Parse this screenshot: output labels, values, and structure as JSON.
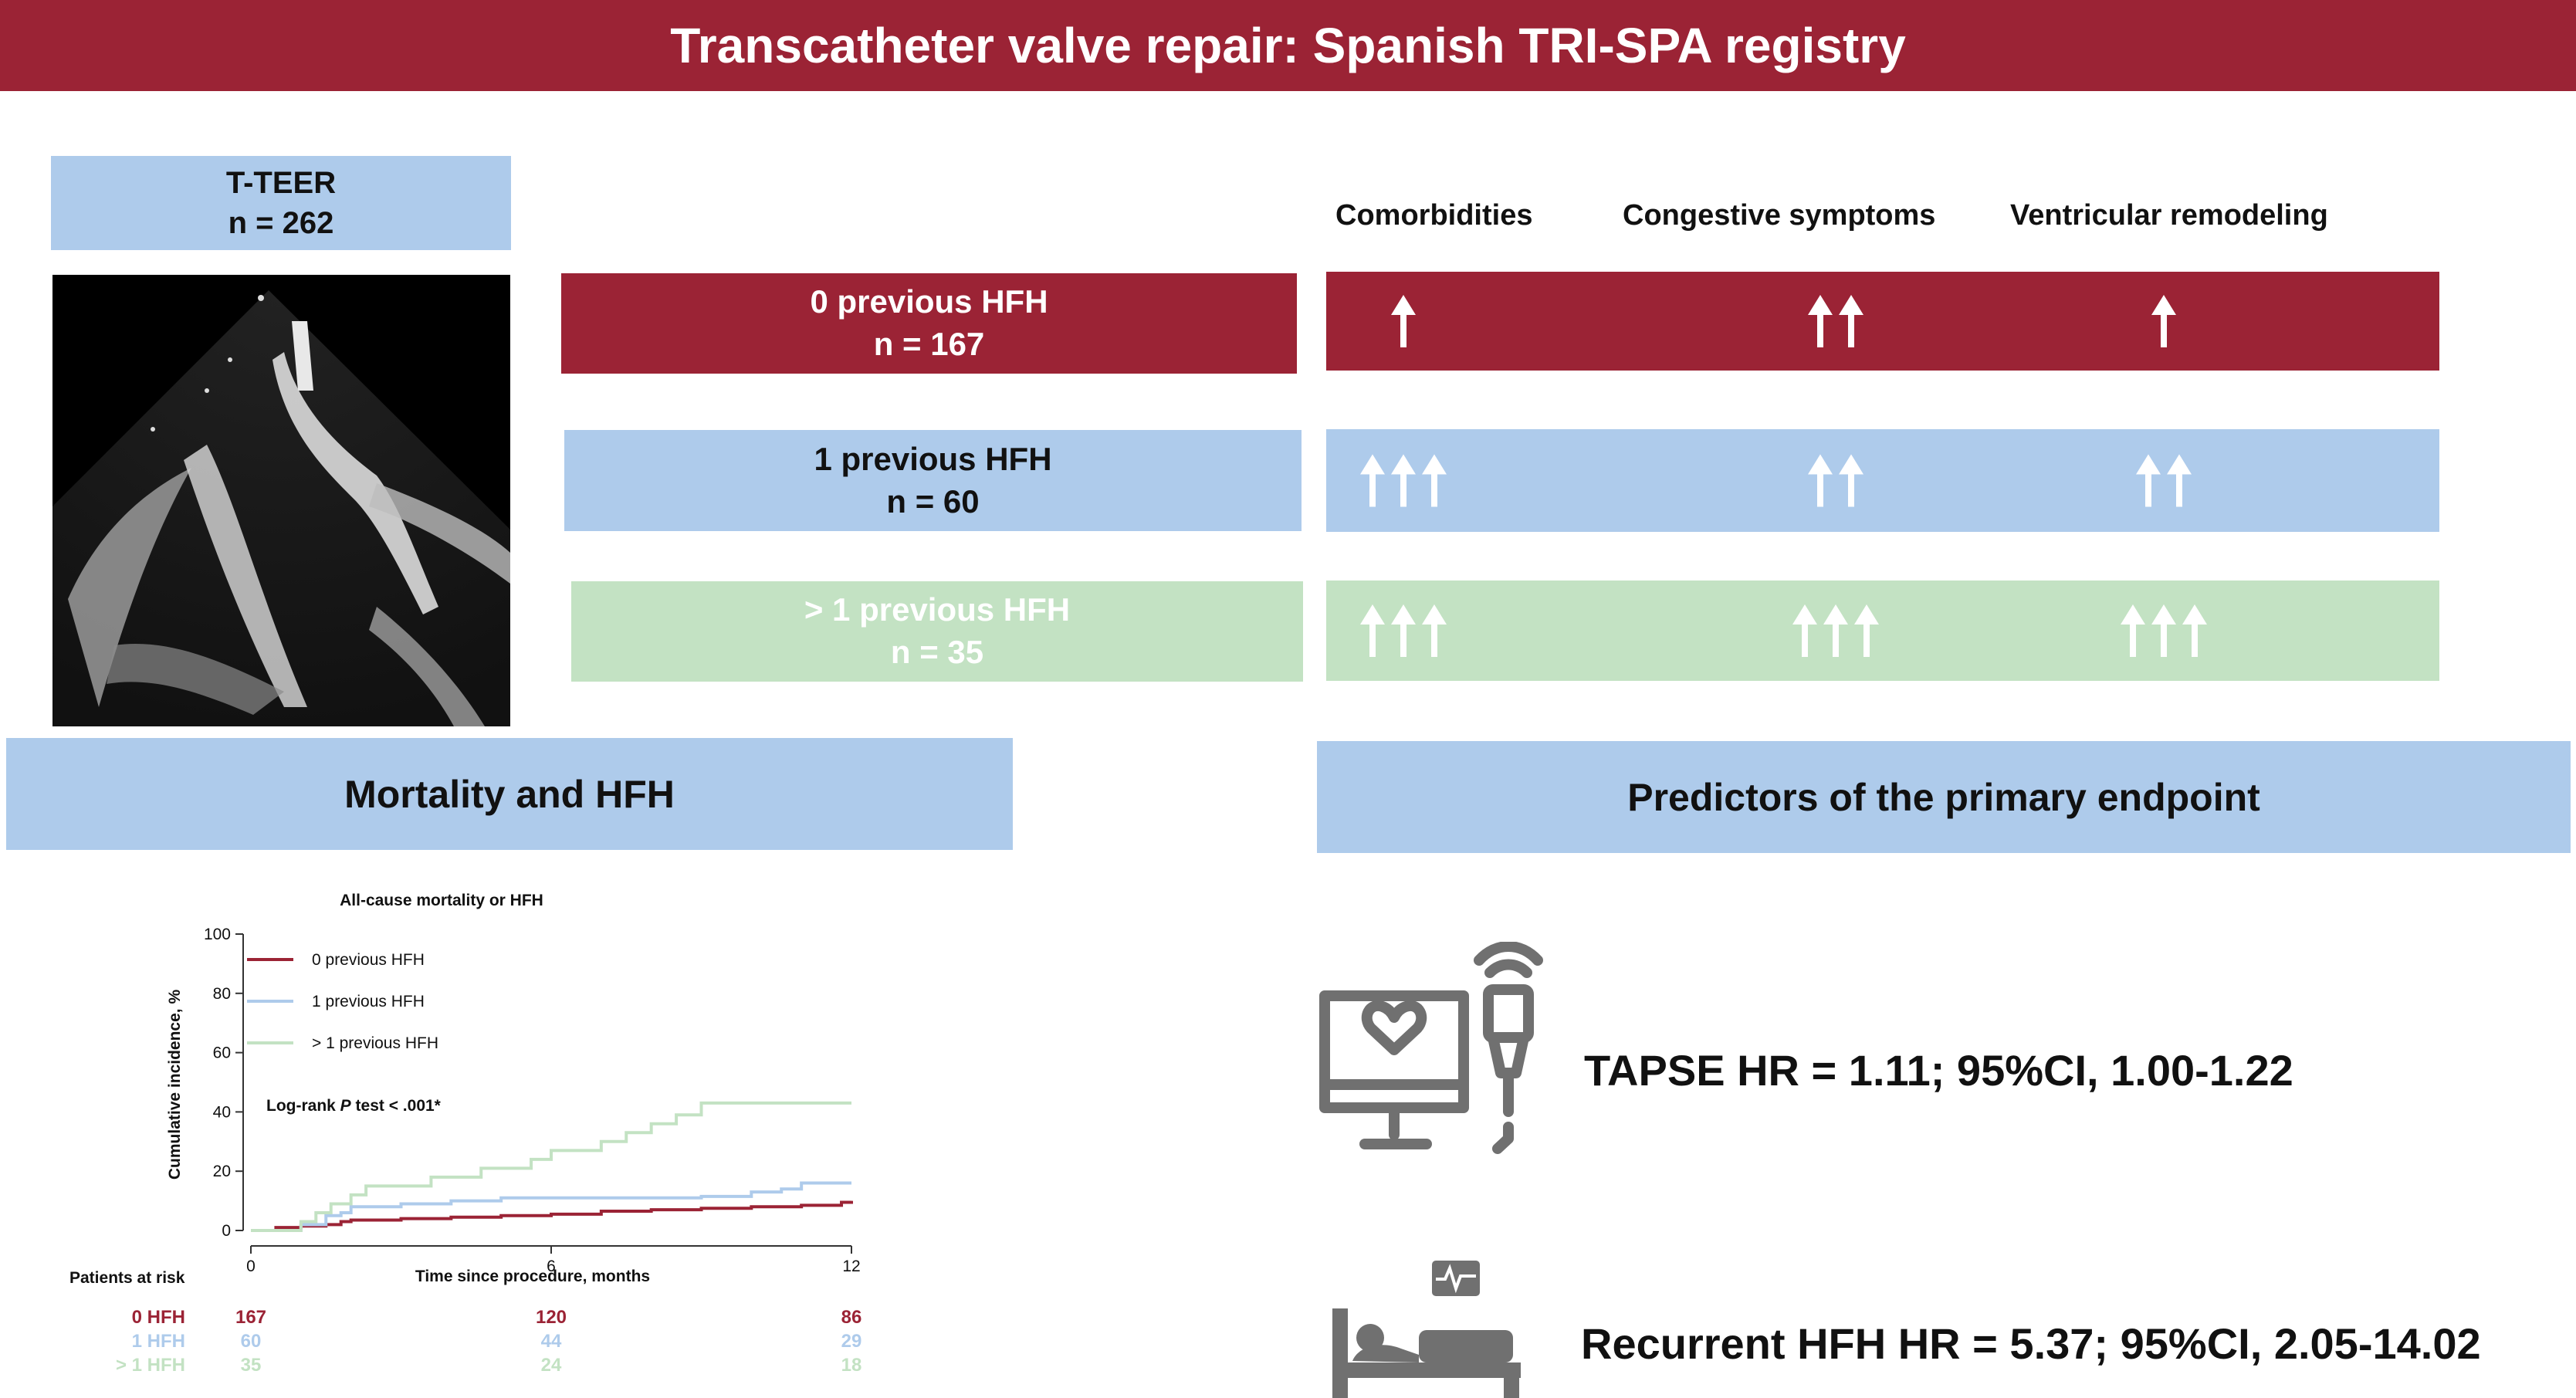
{
  "title": "Transcatheter valve repair: Spanish TRI-SPA registry",
  "teer": {
    "label": "T-TEER",
    "n": "n = 262"
  },
  "columns": [
    "Comorbidities",
    "Congestive symptoms",
    "Ventricular remodeling"
  ],
  "groups": [
    {
      "label": "0 previous HFH",
      "n": "n = 167",
      "color": "#9b2335",
      "arrows": [
        1,
        2,
        1
      ]
    },
    {
      "label": "1 previous HFH",
      "n": "n = 60",
      "color": "#aecbeb",
      "arrows": [
        3,
        2,
        2
      ]
    },
    {
      "label": "> 1 previous HFH",
      "n": "n = 35",
      "color": "#c3e2c3",
      "arrows": [
        3,
        3,
        3
      ]
    }
  ],
  "sections": {
    "left": "Mortality and HFH",
    "right": "Predictors of the primary endpoint"
  },
  "predictors": [
    {
      "icon": "echo-monitor-icon",
      "text": "TAPSE HR = 1.11; 95%CI, 1.00-1.22"
    },
    {
      "icon": "hospital-bed-icon",
      "text": "Recurrent HFH HR = 5.37; 95%CI, 2.05-14.02"
    }
  ],
  "chart_data": {
    "type": "line",
    "title": "All-cause mortality or HFH",
    "xlabel": "Time since procedure, months",
    "ylabel": "Cumulative incidence, %",
    "xlim": [
      0,
      12
    ],
    "ylim": [
      0,
      100
    ],
    "xticks": [
      0,
      6,
      12
    ],
    "yticks": [
      0,
      20,
      40,
      60,
      80,
      100
    ],
    "annotation": {
      "prefix": "Log-rank ",
      "italic": "P",
      "suffix": " test < .001*"
    },
    "legend_position": "top-left",
    "series": [
      {
        "name": "0 previous HFH",
        "color": "#9b2335",
        "x": [
          0,
          0.5,
          1,
          1.5,
          1.8,
          2,
          3,
          4,
          5,
          6,
          7,
          8,
          9,
          10,
          11,
          11.8,
          12
        ],
        "y": [
          0,
          1,
          1.5,
          2,
          3,
          3.5,
          4,
          4.5,
          5,
          5.5,
          6.5,
          7,
          7.5,
          8,
          8.5,
          9.5,
          10
        ]
      },
      {
        "name": "1 previous HFH",
        "color": "#aecbeb",
        "x": [
          0,
          1,
          1.5,
          1.8,
          2,
          3,
          4,
          5,
          6,
          7,
          8,
          9,
          10,
          10.6,
          11,
          12
        ],
        "y": [
          0,
          2,
          5,
          6,
          8,
          9,
          10,
          11,
          11,
          11,
          11,
          11.5,
          13,
          14,
          16,
          16
        ]
      },
      {
        "name": "> 1 previous HFH",
        "color": "#c3e2c3",
        "x": [
          0,
          1,
          1.3,
          1.6,
          2,
          2.3,
          3.6,
          4.6,
          5.6,
          6,
          7,
          7.5,
          8,
          8.5,
          9,
          12
        ],
        "y": [
          0,
          3,
          6,
          9,
          12,
          15,
          18,
          21,
          24,
          27,
          30,
          33,
          36,
          39,
          43,
          43
        ]
      }
    ],
    "risk_table": {
      "label": "Patients at risk",
      "times": [
        0,
        6,
        12
      ],
      "rows": [
        {
          "name": "0 HFH",
          "color": "#9b2335",
          "values": [
            "167",
            "120",
            "86"
          ]
        },
        {
          "name": "1 HFH",
          "color": "#aecbeb",
          "values": [
            "60",
            "44",
            "29"
          ]
        },
        {
          "name": "> 1 HFH",
          "color": "#c3e2c3",
          "values": [
            "35",
            "24",
            "18"
          ]
        }
      ]
    }
  }
}
